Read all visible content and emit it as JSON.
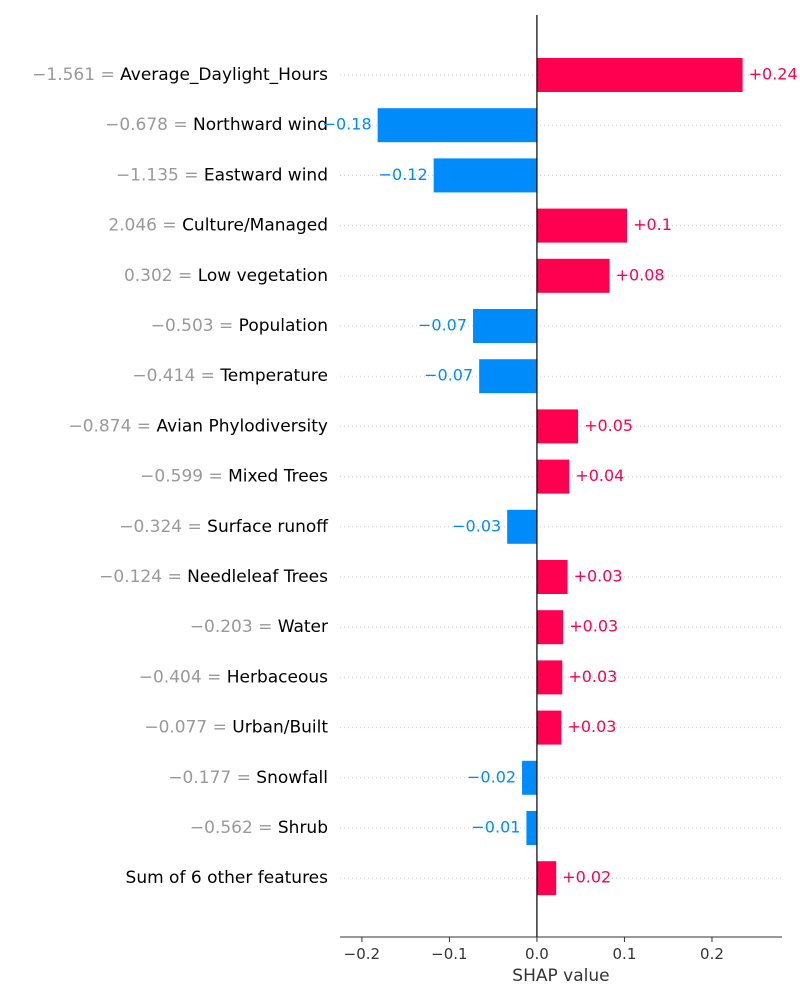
{
  "chart_data": {
    "type": "bar",
    "orientation": "horizontal",
    "xlabel": "SHAP value",
    "xlim": [
      -0.225,
      0.28
    ],
    "xticks": [
      -0.2,
      -0.1,
      0.0,
      0.1,
      0.2
    ],
    "xtick_labels": [
      "−0.2",
      "−0.1",
      "0.0",
      "0.1",
      "0.2"
    ],
    "colors": {
      "positive": "#ff0051",
      "negative": "#008bfb",
      "feature_value": "#999999"
    },
    "grid": "dotted horizontal row lines",
    "rows": [
      {
        "feature_value": "−1.561 =",
        "feature_name": "Average_Daylight_Hours",
        "value": 0.235,
        "label": "+0.24"
      },
      {
        "feature_value": "−0.678 =",
        "feature_name": "Northward wind",
        "value": -0.182,
        "label": "−0.18"
      },
      {
        "feature_value": "−1.135 =",
        "feature_name": "Eastward wind",
        "value": -0.118,
        "label": "−0.12"
      },
      {
        "feature_value": "2.046 =",
        "feature_name": "Culture/Managed",
        "value": 0.103,
        "label": "+0.1"
      },
      {
        "feature_value": "0.302 =",
        "feature_name": "Low vegetation",
        "value": 0.083,
        "label": "+0.08"
      },
      {
        "feature_value": "−0.503 =",
        "feature_name": "Population",
        "value": -0.073,
        "label": "−0.07"
      },
      {
        "feature_value": "−0.414 =",
        "feature_name": "Temperature",
        "value": -0.066,
        "label": "−0.07"
      },
      {
        "feature_value": "−0.874 =",
        "feature_name": "Avian Phylodiversity",
        "value": 0.047,
        "label": "+0.05"
      },
      {
        "feature_value": "−0.599 =",
        "feature_name": "Mixed Trees",
        "value": 0.037,
        "label": "+0.04"
      },
      {
        "feature_value": "−0.324 =",
        "feature_name": "Surface runoff",
        "value": -0.034,
        "label": "−0.03"
      },
      {
        "feature_value": "−0.124 =",
        "feature_name": "Needleleaf Trees",
        "value": 0.035,
        "label": "+0.03"
      },
      {
        "feature_value": "−0.203 =",
        "feature_name": "Water",
        "value": 0.03,
        "label": "+0.03"
      },
      {
        "feature_value": "−0.404 =",
        "feature_name": "Herbaceous",
        "value": 0.029,
        "label": "+0.03"
      },
      {
        "feature_value": "−0.077 =",
        "feature_name": "Urban/Built",
        "value": 0.028,
        "label": "+0.03"
      },
      {
        "feature_value": "−0.177 =",
        "feature_name": "Snowfall",
        "value": -0.017,
        "label": "−0.02"
      },
      {
        "feature_value": "−0.562 =",
        "feature_name": "Shrub",
        "value": -0.012,
        "label": "−0.01"
      },
      {
        "feature_value": "",
        "feature_name": "Sum of 6 other features",
        "value": 0.022,
        "label": "+0.02"
      }
    ]
  }
}
